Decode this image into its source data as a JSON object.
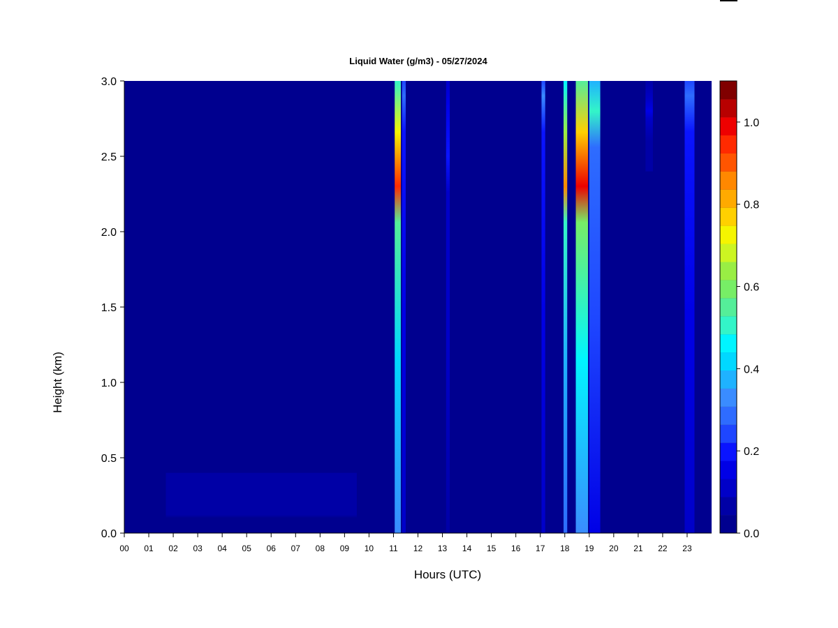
{
  "chart_data": {
    "type": "heatmap",
    "title": "Liquid Water (g/m3) - 05/27/2024",
    "xlabel": "Hours (UTC)",
    "ylabel": "Height (km)",
    "xlim": [
      0,
      24
    ],
    "ylim": [
      0,
      3.0
    ],
    "x_ticks": [
      "00",
      "01",
      "02",
      "03",
      "04",
      "05",
      "06",
      "07",
      "08",
      "09",
      "10",
      "11",
      "12",
      "13",
      "14",
      "15",
      "16",
      "17",
      "18",
      "19",
      "20",
      "21",
      "22",
      "23"
    ],
    "y_ticks": [
      "0.0",
      "0.5",
      "1.0",
      "1.5",
      "2.0",
      "2.5",
      "3.0"
    ],
    "colorbar": {
      "range": [
        0,
        1.1
      ],
      "step": 0.05,
      "tick_labels": [
        "0.0",
        "0.2",
        "0.4",
        "0.6",
        "0.8",
        "1.0"
      ],
      "colors": [
        "#00008f",
        "#0000a6",
        "#0000c8",
        "#0000e6",
        "#0a14ff",
        "#1e46ff",
        "#2e6cff",
        "#3a8cff",
        "#1fb2ff",
        "#00d8ff",
        "#00f5ff",
        "#33f5c8",
        "#55ee99",
        "#77ee66",
        "#99ee44",
        "#ccf522",
        "#f5f500",
        "#ffd000",
        "#ffaa00",
        "#ff8800",
        "#ff5500",
        "#ff2a00",
        "#ee0000",
        "#b80000",
        "#800000"
      ]
    },
    "background_value": 0.0,
    "features": [
      {
        "x_start": 11.05,
        "x_end": 11.3,
        "y_start": 0.0,
        "y_end": 3.0,
        "peak_value": 0.95,
        "peak_height": 2.3
      },
      {
        "x_start": 11.35,
        "x_end": 11.5,
        "y_start": 0.0,
        "y_end": 3.0,
        "peak_value": 0.3,
        "peak_height": 2.9
      },
      {
        "x_start": 13.15,
        "x_end": 13.3,
        "y_start": 0.0,
        "y_end": 3.0,
        "peak_value": 0.2,
        "peak_height": 2.5
      },
      {
        "x_start": 17.05,
        "x_end": 17.2,
        "y_start": 0.0,
        "y_end": 3.0,
        "peak_value": 0.35,
        "peak_height": 2.9
      },
      {
        "x_start": 17.95,
        "x_end": 18.1,
        "y_start": 0.0,
        "y_end": 3.0,
        "peak_value": 0.85,
        "peak_height": 2.3
      },
      {
        "x_start": 18.45,
        "x_end": 18.95,
        "y_start": 0.0,
        "y_end": 3.0,
        "peak_value": 1.0,
        "peak_height": 2.3
      },
      {
        "x_start": 19.0,
        "x_end": 19.45,
        "y_start": 0.0,
        "y_end": 3.0,
        "peak_value": 0.5,
        "peak_height": 2.8
      },
      {
        "x_start": 21.3,
        "x_end": 21.6,
        "y_start": 2.4,
        "y_end": 3.0,
        "peak_value": 0.15,
        "peak_height": 2.8
      },
      {
        "x_start": 22.9,
        "x_end": 23.3,
        "y_start": 0.0,
        "y_end": 3.0,
        "peak_value": 0.3,
        "peak_height": 2.9
      },
      {
        "x_start": 1.7,
        "x_end": 9.5,
        "y_start": 0.05,
        "y_end": 0.4,
        "peak_value": 0.08,
        "peak_height": 0.15
      }
    ]
  }
}
